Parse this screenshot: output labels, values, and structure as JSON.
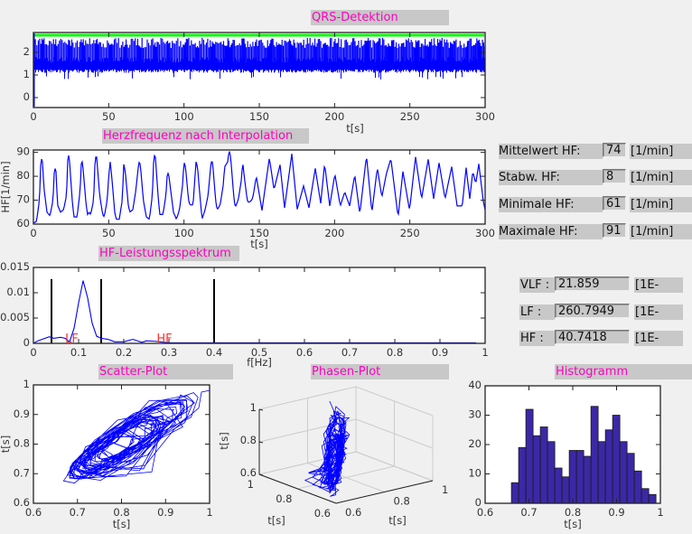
{
  "colors": {
    "signal": "#0000ff",
    "detection": "#00ff00",
    "title_text": "#ff00c0",
    "band_marker": "#000000",
    "band_label": "#ff3030",
    "hist_bar": "#3b28a6"
  },
  "titles": {
    "qrs": "QRS-Detektion",
    "hr": "Herzfrequenz nach Interpolation",
    "spectrum": "HF-Leistungsspektrum",
    "scatter": "Scatter-Plot",
    "phase": "Phasen-Plot",
    "histogram": "Histogramm"
  },
  "stats": [
    {
      "label": "Mittelwert HF:",
      "value": "74",
      "unit": "[1/min]"
    },
    {
      "label": "Stabw. HF:",
      "value": "8",
      "unit": "[1/min]"
    },
    {
      "label": "Minimale HF:",
      "value": "61",
      "unit": "[1/min]"
    },
    {
      "label": "Maximale HF:",
      "value": "91",
      "unit": "[1/min]"
    }
  ],
  "bands": [
    {
      "label": "VLF :",
      "value": "21.859",
      "unit": "[1E-"
    },
    {
      "label": "LF :",
      "value": "260.7949",
      "unit": "[1E-"
    },
    {
      "label": "HF :",
      "value": "40.7418",
      "unit": "[1E-"
    }
  ],
  "chart_data": [
    {
      "id": "qrs",
      "type": "line",
      "xlabel": "t[s]",
      "ylabel": "",
      "xlim": [
        0,
        300
      ],
      "ylim": [
        -0.44,
        2.88
      ],
      "xticks": [
        "0",
        "50",
        "100",
        "150",
        "200",
        "250",
        "300"
      ],
      "xtick_values": [
        0,
        50,
        100,
        150,
        200,
        250,
        300
      ],
      "yticks": [
        "0",
        "1",
        "2"
      ],
      "ytick_values": [
        0,
        1,
        2
      ],
      "detection_level": 2.76,
      "r_peak_range": [
        2.2,
        2.65
      ],
      "baseline_band": [
        1.1,
        1.75
      ]
    },
    {
      "id": "hr",
      "type": "line",
      "xlabel": "t[s]",
      "ylabel": "HF[1/min]",
      "xlim": [
        0,
        300
      ],
      "ylim": [
        60,
        91
      ],
      "xticks": [
        "0",
        "50",
        "100",
        "150",
        "200",
        "250",
        "300"
      ],
      "xtick_values": [
        0,
        50,
        100,
        150,
        200,
        250,
        300
      ],
      "yticks": [
        "60",
        "70",
        "80",
        "90"
      ],
      "ytick_values": [
        60,
        70,
        80,
        90
      ],
      "x": [
        0,
        2,
        4,
        5,
        6,
        7,
        9,
        11,
        13,
        14,
        15,
        16,
        18,
        20,
        22,
        23,
        24,
        26,
        27,
        29,
        31,
        32,
        33,
        35,
        36,
        37,
        38,
        40,
        41,
        42,
        44,
        46,
        47,
        49,
        50,
        51,
        52,
        54,
        55,
        57,
        59,
        60,
        61,
        63,
        64,
        66,
        68,
        70,
        71,
        73,
        75,
        77,
        79,
        80,
        81,
        83,
        84,
        86,
        88,
        89,
        90,
        91,
        93,
        95,
        97,
        99,
        100,
        101,
        103,
        104,
        106,
        108,
        109,
        110,
        112,
        114,
        116,
        118,
        119,
        121,
        122,
        124,
        126,
        127,
        129,
        130,
        131,
        133,
        134,
        136,
        138,
        139,
        140,
        142,
        143,
        145,
        146,
        148,
        151.8,
        156.7,
        159.8,
        163.8,
        166.8,
        171.6,
        175.2,
        179.4,
        183,
        187.2,
        190.8,
        193.4,
        196.8,
        200.2,
        203.8,
        206.8,
        210,
        213.4,
        216.8,
        221.2,
        224.8,
        228.4,
        231.4,
        234.4,
        237.4,
        242.2,
        245.4,
        249.8,
        253.8,
        257.8,
        262.2,
        265.8,
        269.4,
        273.4,
        277.8,
        281.4,
        284.8,
        287.4,
        289.8,
        291.8,
        293.8,
        295.8,
        298.8,
        300
      ],
      "y": [
        60.5,
        61,
        70,
        88,
        86,
        75,
        65,
        63.5,
        70,
        84,
        82,
        68,
        65,
        66,
        72,
        90.5,
        86,
        68,
        63,
        63,
        74,
        88,
        83,
        68,
        64,
        65,
        64,
        70,
        88,
        88,
        72,
        64,
        63,
        70,
        80,
        86,
        80,
        65,
        62,
        62,
        70,
        85,
        82,
        68,
        65,
        66,
        74,
        86,
        85,
        70,
        63,
        62,
        72,
        89,
        88,
        70,
        64,
        64,
        72,
        82,
        80,
        75,
        65,
        62,
        66,
        76,
        86,
        84,
        70,
        68,
        68,
        86,
        84,
        76,
        62,
        66,
        72,
        86,
        86,
        70,
        66,
        68,
        76,
        84,
        86,
        91,
        88,
        72,
        67,
        70,
        78,
        86,
        80,
        70,
        69,
        70,
        72,
        80,
        65.7,
        87.7,
        74.4,
        84.8,
        66.8,
        89.4,
        66.2,
        76,
        66.8,
        83.3,
        68.7,
        85.2,
        67.6,
        80.9,
        67.6,
        73.4,
        67.6,
        80.6,
        64.3,
        88.6,
        64.9,
        83.6,
        71.3,
        81,
        87.4,
        63,
        82,
        65.8,
        88.1,
        70.6,
        87.1,
        70.6,
        85.6,
        70.6,
        84,
        67.6,
        67.6,
        83.6,
        70.6,
        82,
        77,
        85.2,
        69.5,
        66
      ]
    },
    {
      "id": "spectrum",
      "type": "line",
      "xlabel": "f[Hz]",
      "ylabel": "",
      "xlim": [
        0,
        1
      ],
      "ylim": [
        0,
        0.015
      ],
      "xticks": [
        "0",
        "0.1",
        "0.2",
        "0.3",
        "0.4",
        "0.5",
        "0.6",
        "0.7",
        "0.8",
        "0.9",
        "1"
      ],
      "xtick_values": [
        0,
        0.1,
        0.2,
        0.3,
        0.4,
        0.5,
        0.6,
        0.7,
        0.8,
        0.9,
        1
      ],
      "yticks": [
        "0",
        "0.005",
        "0.01",
        "0.015"
      ],
      "ytick_values": [
        0,
        0.005,
        0.01,
        0.015
      ],
      "x": [
        0,
        0.01,
        0.035,
        0.045,
        0.06,
        0.07,
        0.08,
        0.09,
        0.1,
        0.11,
        0.12,
        0.13,
        0.14,
        0.15,
        0.165,
        0.18,
        0.2,
        0.22,
        0.24,
        0.25,
        0.27,
        0.3,
        0.98
      ],
      "y": [
        0,
        0.0005,
        0.0013,
        0.001,
        0.0012,
        0.001,
        0.0003,
        0.003,
        0.008,
        0.0124,
        0.009,
        0.004,
        0.0014,
        0.001,
        0.0008,
        0.0003,
        0.0003,
        0.0008,
        0.0002,
        0.0005,
        0.0004,
        0.0001,
        0.0001
      ],
      "band_limits": [
        0.04,
        0.15,
        0.4
      ],
      "band_marker_height": 0.0127,
      "annotations": [
        {
          "text": "LF",
          "x": 0.085
        },
        {
          "text": "HF",
          "x": 0.29
        }
      ]
    },
    {
      "id": "scatter",
      "type": "line",
      "xlabel": "t[s]",
      "ylabel": "t[s]",
      "xlim": [
        0.6,
        1
      ],
      "ylim": [
        0.6,
        1
      ],
      "xticks": [
        "0.6",
        "0.7",
        "0.8",
        "0.9",
        "1"
      ],
      "xtick_values": [
        0.6,
        0.7,
        0.8,
        0.9,
        1
      ],
      "yticks": [
        "0.6",
        "0.7",
        "0.8",
        "0.9",
        "1"
      ],
      "ytick_values": [
        0.6,
        0.7,
        0.8,
        0.9,
        1
      ]
    },
    {
      "id": "phase",
      "type": "line",
      "xlabel": "t[s]",
      "ylabel": "t[s]",
      "zlabel": "t[s]",
      "xlim": [
        0.6,
        1
      ],
      "ylim": [
        0.6,
        1
      ],
      "zlim": [
        0.6,
        1
      ],
      "ticks": [
        "0.6",
        "0.8",
        "1"
      ],
      "tick_values": [
        0.6,
        0.8,
        1
      ]
    },
    {
      "id": "histogram",
      "type": "bar",
      "xlabel": "t[s]",
      "ylabel": "",
      "xlim": [
        0.6,
        1
      ],
      "ylim": [
        0,
        40
      ],
      "xticks": [
        "0.6",
        "0.7",
        "0.8",
        "0.9",
        "1"
      ],
      "xtick_values": [
        0.6,
        0.7,
        0.8,
        0.9,
        1
      ],
      "yticks": [
        "0",
        "10",
        "20",
        "30",
        "40"
      ],
      "ytick_values": [
        0,
        10,
        20,
        30,
        40
      ],
      "bin_start": 0.66,
      "bin_width": 0.0165,
      "values": [
        7,
        19,
        32,
        23,
        26,
        21,
        12,
        9,
        18,
        18,
        16,
        33,
        21,
        25,
        30,
        21,
        17,
        11,
        5,
        3
      ]
    }
  ]
}
